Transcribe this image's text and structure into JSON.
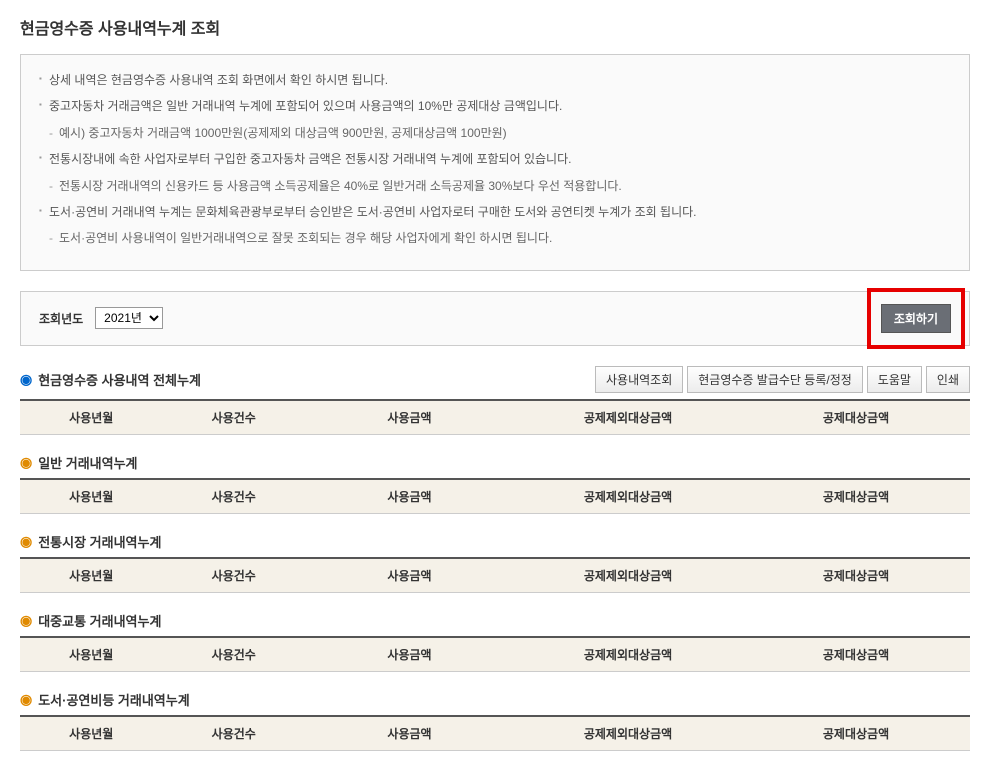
{
  "page_title": "현금영수증 사용내역누계 조회",
  "info": {
    "items": [
      {
        "text": "상세 내역은 현금영수증 사용내역 조회 화면에서 확인 하시면 됩니다."
      },
      {
        "text": "중고자동차 거래금액은 일반 거래내역 누계에 포함되어 있으며 사용금액의 10%만 공제대상 금액입니다.",
        "sub": "예시) 중고자동차 거래금액 1000만원(공제제외 대상금액 900만원, 공제대상금액 100만원)"
      },
      {
        "text": "전통시장내에 속한 사업자로부터 구입한 중고자동차 금액은 전통시장 거래내역 누계에 포함되어 있습니다.",
        "sub": "전통시장 거래내역의 신용카드 등 사용금액 소득공제율은 40%로 일반거래 소득공제율 30%보다 우선 적용합니다."
      },
      {
        "text": "도서·공연비 거래내역 누계는 문화체육관광부로부터 승인받은 도서·공연비 사업자로터 구매한 도서와 공연티켓 누계가 조회 됩니다.",
        "sub": "도서·공연비 사용내역이 일반거래내역으로 잘못 조회되는 경우 해당 사업자에게 확인 하시면 됩니다."
      }
    ]
  },
  "query": {
    "year_label": "조회년도",
    "year_value": "2021년",
    "submit_label": "조회하기"
  },
  "columns": [
    "사용년월",
    "사용건수",
    "사용금액",
    "공제제외대상금액",
    "공제대상금액"
  ],
  "col_widths": [
    "15%",
    "15%",
    "22%",
    "24%",
    "24%"
  ],
  "sections": [
    {
      "title": "현금영수증 사용내역 전체누계",
      "bullet": "blue",
      "has_buttons": true
    },
    {
      "title": "일반 거래내역누계",
      "bullet": "orange",
      "has_buttons": false
    },
    {
      "title": "전통시장 거래내역누계",
      "bullet": "orange",
      "has_buttons": false
    },
    {
      "title": "대중교통 거래내역누계",
      "bullet": "orange",
      "has_buttons": false
    },
    {
      "title": "도서·공연비등 거래내역누계",
      "bullet": "orange",
      "has_buttons": false
    }
  ],
  "buttons": {
    "detail": "사용내역조회",
    "register": "현금영수증 발급수단 등록/정정",
    "help": "도움말",
    "print": "인쇄"
  }
}
